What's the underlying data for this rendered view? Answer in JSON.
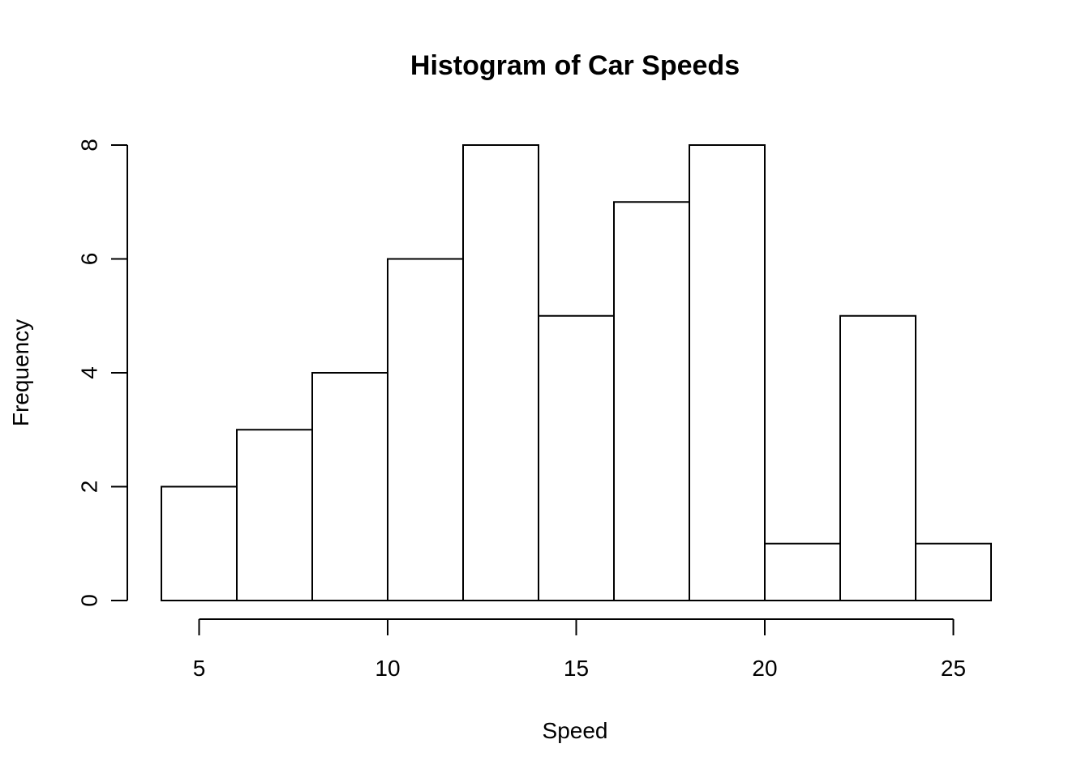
{
  "chart_data": {
    "type": "bar",
    "title": "Histogram of Car Speeds",
    "xlabel": "Speed",
    "ylabel": "Frequency",
    "bins": [
      {
        "start": 4,
        "end": 6,
        "count": 2
      },
      {
        "start": 6,
        "end": 8,
        "count": 3
      },
      {
        "start": 8,
        "end": 10,
        "count": 4
      },
      {
        "start": 10,
        "end": 12,
        "count": 6
      },
      {
        "start": 12,
        "end": 14,
        "count": 8
      },
      {
        "start": 14,
        "end": 16,
        "count": 5
      },
      {
        "start": 16,
        "end": 18,
        "count": 7
      },
      {
        "start": 18,
        "end": 20,
        "count": 8
      },
      {
        "start": 20,
        "end": 22,
        "count": 1
      },
      {
        "start": 22,
        "end": 24,
        "count": 5
      },
      {
        "start": 24,
        "end": 26,
        "count": 1
      }
    ],
    "xlim": [
      4,
      26
    ],
    "ylim": [
      0,
      8
    ],
    "x_ticks": [
      5,
      10,
      15,
      20,
      25
    ],
    "y_ticks": [
      0,
      2,
      4,
      6,
      8
    ],
    "bar_fill": "#ffffff",
    "bar_stroke": "#000000",
    "grid": false,
    "legend": "none"
  }
}
